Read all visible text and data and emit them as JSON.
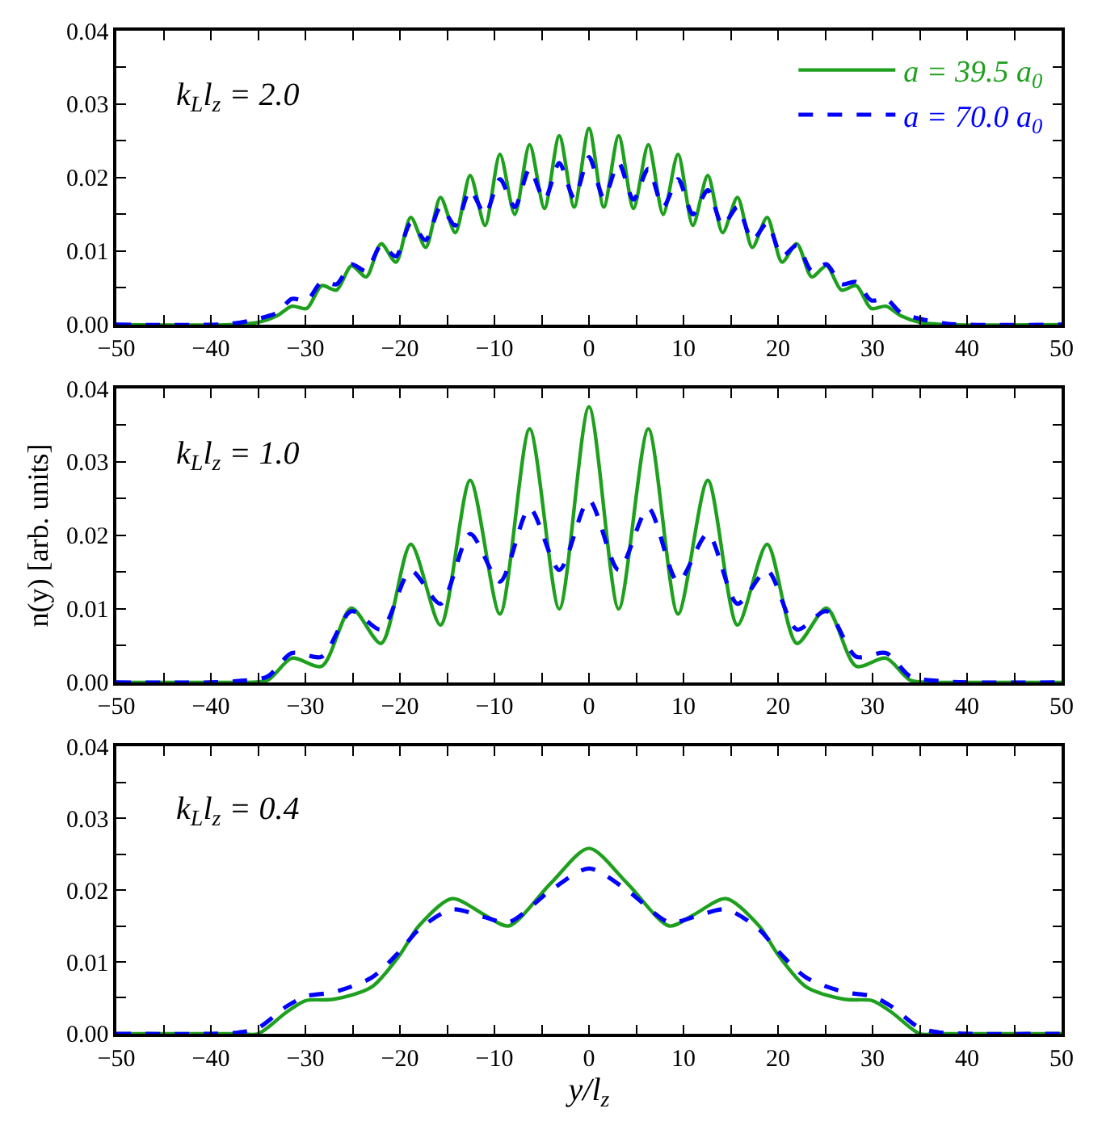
{
  "chart_data": [
    {
      "type": "line",
      "annotations": [
        "k$_{L}$l$_{z}$ = 2.0"
      ],
      "legend": "top right",
      "xlim": [
        -50,
        50
      ],
      "ylim": [
        0,
        0.04
      ],
      "xticks": [
        -50,
        {
          "value": -45,
          "label": null
        },
        -40,
        {
          "value": -35,
          "label": null
        },
        -30,
        {
          "value": -25,
          "label": null
        },
        -20,
        {
          "value": -15,
          "label": null
        },
        -10,
        {
          "value": -5,
          "label": null
        },
        0,
        {
          "value": 5,
          "label": null
        },
        10,
        {
          "value": 15,
          "label": null
        },
        20,
        {
          "value": 25,
          "label": null
        },
        30,
        {
          "value": 35,
          "label": null
        },
        40,
        {
          "value": 45,
          "label": null
        },
        50
      ],
      "yticks": [
        {
          "value": 0,
          "label": "0.00"
        },
        {
          "value": 0.005,
          "label": null
        },
        {
          "value": 0.01,
          "label": "0.01"
        },
        {
          "value": 0.015,
          "label": null
        },
        {
          "value": 0.02,
          "label": "0.02"
        },
        {
          "value": 0.025,
          "label": null
        },
        {
          "value": 0.03,
          "label": "0.03"
        },
        {
          "value": 0.035,
          "label": null
        },
        {
          "value": 0.04,
          "label": "0.04"
        }
      ],
      "x": [
        -50,
        -38,
        -35,
        -33,
        -31.42,
        -29.85,
        -28.27,
        -26.7,
        -25.13,
        -23.56,
        -21.99,
        -20.42,
        -18.85,
        -17.28,
        -15.71,
        -14.14,
        -12.57,
        -10.99,
        -9.42,
        -7.85,
        -6.28,
        -4.71,
        -3.14,
        -1.57,
        0,
        1.57,
        3.14,
        4.71,
        6.28,
        7.85,
        9.42,
        10.99,
        12.57,
        14.14,
        15.71,
        17.28,
        18.85,
        20.42,
        21.99,
        23.56,
        25.13,
        26.7,
        28.27,
        29.85,
        31.42,
        33,
        35,
        38,
        50
      ],
      "series": [
        {
          "name": "a = 39.5 a$_{0}$",
          "color": "#1ea01e",
          "line_style": "solid",
          "values": [
            0,
            0,
            0.0003,
            0.0012,
            0.0025,
            0.0022,
            0.0053,
            0.0047,
            0.008,
            0.0065,
            0.011,
            0.0085,
            0.0146,
            0.0105,
            0.0173,
            0.0125,
            0.0203,
            0.0135,
            0.0232,
            0.015,
            0.0245,
            0.0158,
            0.0257,
            0.016,
            0.0267,
            0.016,
            0.0257,
            0.0158,
            0.0245,
            0.015,
            0.0232,
            0.0135,
            0.0203,
            0.0125,
            0.0173,
            0.0105,
            0.0146,
            0.0085,
            0.011,
            0.0065,
            0.008,
            0.0047,
            0.0053,
            0.0022,
            0.0025,
            0.0012,
            0.0003,
            0,
            0
          ]
        },
        {
          "name": "a = 70.0 a$_{0}$",
          "color": "#0000ff",
          "line_style": "dashed",
          "values": [
            0,
            0.0001,
            0.0008,
            0.0016,
            0.0035,
            0.0033,
            0.0058,
            0.0055,
            0.0082,
            0.0073,
            0.0108,
            0.0093,
            0.0138,
            0.0115,
            0.016,
            0.0135,
            0.0183,
            0.015,
            0.0198,
            0.016,
            0.0212,
            0.017,
            0.022,
            0.0172,
            0.0228,
            0.0172,
            0.022,
            0.017,
            0.0212,
            0.016,
            0.0198,
            0.015,
            0.0183,
            0.0135,
            0.016,
            0.0115,
            0.0138,
            0.0093,
            0.0108,
            0.0073,
            0.0082,
            0.0055,
            0.0058,
            0.0033,
            0.0035,
            0.0016,
            0.0008,
            0.0001,
            0
          ]
        }
      ]
    },
    {
      "type": "line",
      "ylabel": "n(y) [arb. units]",
      "annotations": [
        "k$_{L}$l$_{z}$ = 1.0"
      ],
      "xlim": [
        -50,
        50
      ],
      "ylim": [
        0,
        0.04
      ],
      "xticks": [
        -50,
        {
          "value": -45,
          "label": null
        },
        -40,
        {
          "value": -35,
          "label": null
        },
        -30,
        {
          "value": -25,
          "label": null
        },
        -20,
        {
          "value": -15,
          "label": null
        },
        -10,
        {
          "value": -5,
          "label": null
        },
        0,
        {
          "value": 5,
          "label": null
        },
        10,
        {
          "value": 15,
          "label": null
        },
        20,
        {
          "value": 25,
          "label": null
        },
        30,
        {
          "value": 35,
          "label": null
        },
        40,
        {
          "value": 45,
          "label": null
        },
        50
      ],
      "yticks": [
        {
          "value": 0,
          "label": "0.00"
        },
        {
          "value": 0.005,
          "label": null
        },
        {
          "value": 0.01,
          "label": "0.01"
        },
        {
          "value": 0.015,
          "label": null
        },
        {
          "value": 0.02,
          "label": "0.02"
        },
        {
          "value": 0.025,
          "label": null
        },
        {
          "value": 0.03,
          "label": "0.03"
        },
        {
          "value": 0.035,
          "label": null
        },
        {
          "value": 0.04,
          "label": "0.04"
        }
      ],
      "x": [
        -50,
        -40,
        -37,
        -34,
        -31.42,
        -28.27,
        -25.13,
        -21.99,
        -18.85,
        -15.71,
        -12.57,
        -9.42,
        -6.28,
        -3.14,
        0,
        3.14,
        6.28,
        9.42,
        12.57,
        15.71,
        18.85,
        21.99,
        25.13,
        28.27,
        31.42,
        34,
        37,
        40,
        50
      ],
      "series": [
        {
          "color": "#1ea01e",
          "line_style": "solid",
          "values": [
            0,
            0,
            0,
            0.0003,
            0.0033,
            0.0022,
            0.0101,
            0.0053,
            0.0188,
            0.0078,
            0.0275,
            0.0093,
            0.0345,
            0.01,
            0.0375,
            0.01,
            0.0345,
            0.0093,
            0.0275,
            0.0078,
            0.0188,
            0.0053,
            0.0101,
            0.0022,
            0.0033,
            0.0003,
            0,
            0,
            0
          ]
        },
        {
          "color": "#0000ff",
          "line_style": "dashed",
          "values": [
            0,
            0,
            0.0002,
            0.0008,
            0.004,
            0.0035,
            0.0097,
            0.0072,
            0.0152,
            0.0107,
            0.0202,
            0.0137,
            0.0237,
            0.0153,
            0.0248,
            0.0153,
            0.0237,
            0.0137,
            0.0202,
            0.0107,
            0.0152,
            0.0072,
            0.0097,
            0.0035,
            0.004,
            0.0008,
            0.0002,
            0,
            0
          ]
        }
      ]
    },
    {
      "type": "line",
      "xlabel": "y/l$_{z}$",
      "annotations": [
        "k$_{L}$l$_{z}$ = 0.4"
      ],
      "xlim": [
        -50,
        50
      ],
      "ylim": [
        0,
        0.04
      ],
      "xticks": [
        -50,
        {
          "value": -45,
          "label": null
        },
        -40,
        {
          "value": -35,
          "label": null
        },
        -30,
        {
          "value": -25,
          "label": null
        },
        -20,
        {
          "value": -15,
          "label": null
        },
        -10,
        {
          "value": -5,
          "label": null
        },
        0,
        {
          "value": 5,
          "label": null
        },
        10,
        {
          "value": 15,
          "label": null
        },
        20,
        {
          "value": 25,
          "label": null
        },
        30,
        {
          "value": 35,
          "label": null
        },
        40,
        {
          "value": 45,
          "label": null
        },
        50
      ],
      "yticks": [
        {
          "value": 0,
          "label": "0.00"
        },
        {
          "value": 0.005,
          "label": null
        },
        {
          "value": 0.01,
          "label": "0.01"
        },
        {
          "value": 0.015,
          "label": null
        },
        {
          "value": 0.02,
          "label": "0.02"
        },
        {
          "value": 0.025,
          "label": null
        },
        {
          "value": 0.03,
          "label": "0.03"
        },
        {
          "value": 0.035,
          "label": null
        },
        {
          "value": 0.04,
          "label": "0.04"
        }
      ],
      "x": [
        -50,
        -40,
        -37,
        -35,
        -32,
        -30,
        -27,
        -23,
        -20,
        -18,
        -14.5,
        -11,
        -8.5,
        -4,
        0,
        4,
        8.5,
        11,
        14.5,
        18,
        20,
        23,
        27,
        30,
        32,
        35,
        37,
        40,
        50
      ],
      "series": [
        {
          "color": "#1ea01e",
          "line_style": "solid",
          "values": [
            0,
            0,
            0,
            0,
            0.003,
            0.0046,
            0.0048,
            0.0065,
            0.011,
            0.015,
            0.0188,
            0.0165,
            0.015,
            0.021,
            0.0258,
            0.021,
            0.015,
            0.0165,
            0.0188,
            0.015,
            0.011,
            0.0065,
            0.0048,
            0.0046,
            0.003,
            0,
            0,
            0,
            0
          ]
        },
        {
          "color": "#0000ff",
          "line_style": "dashed",
          "values": [
            0,
            0,
            0.0002,
            0.0008,
            0.0038,
            0.0052,
            0.0058,
            0.0078,
            0.0115,
            0.0145,
            0.0173,
            0.0162,
            0.0155,
            0.02,
            0.023,
            0.02,
            0.0155,
            0.0162,
            0.0173,
            0.0145,
            0.0115,
            0.0078,
            0.0058,
            0.0052,
            0.0038,
            0.0008,
            0.0002,
            0,
            0
          ]
        }
      ]
    }
  ]
}
